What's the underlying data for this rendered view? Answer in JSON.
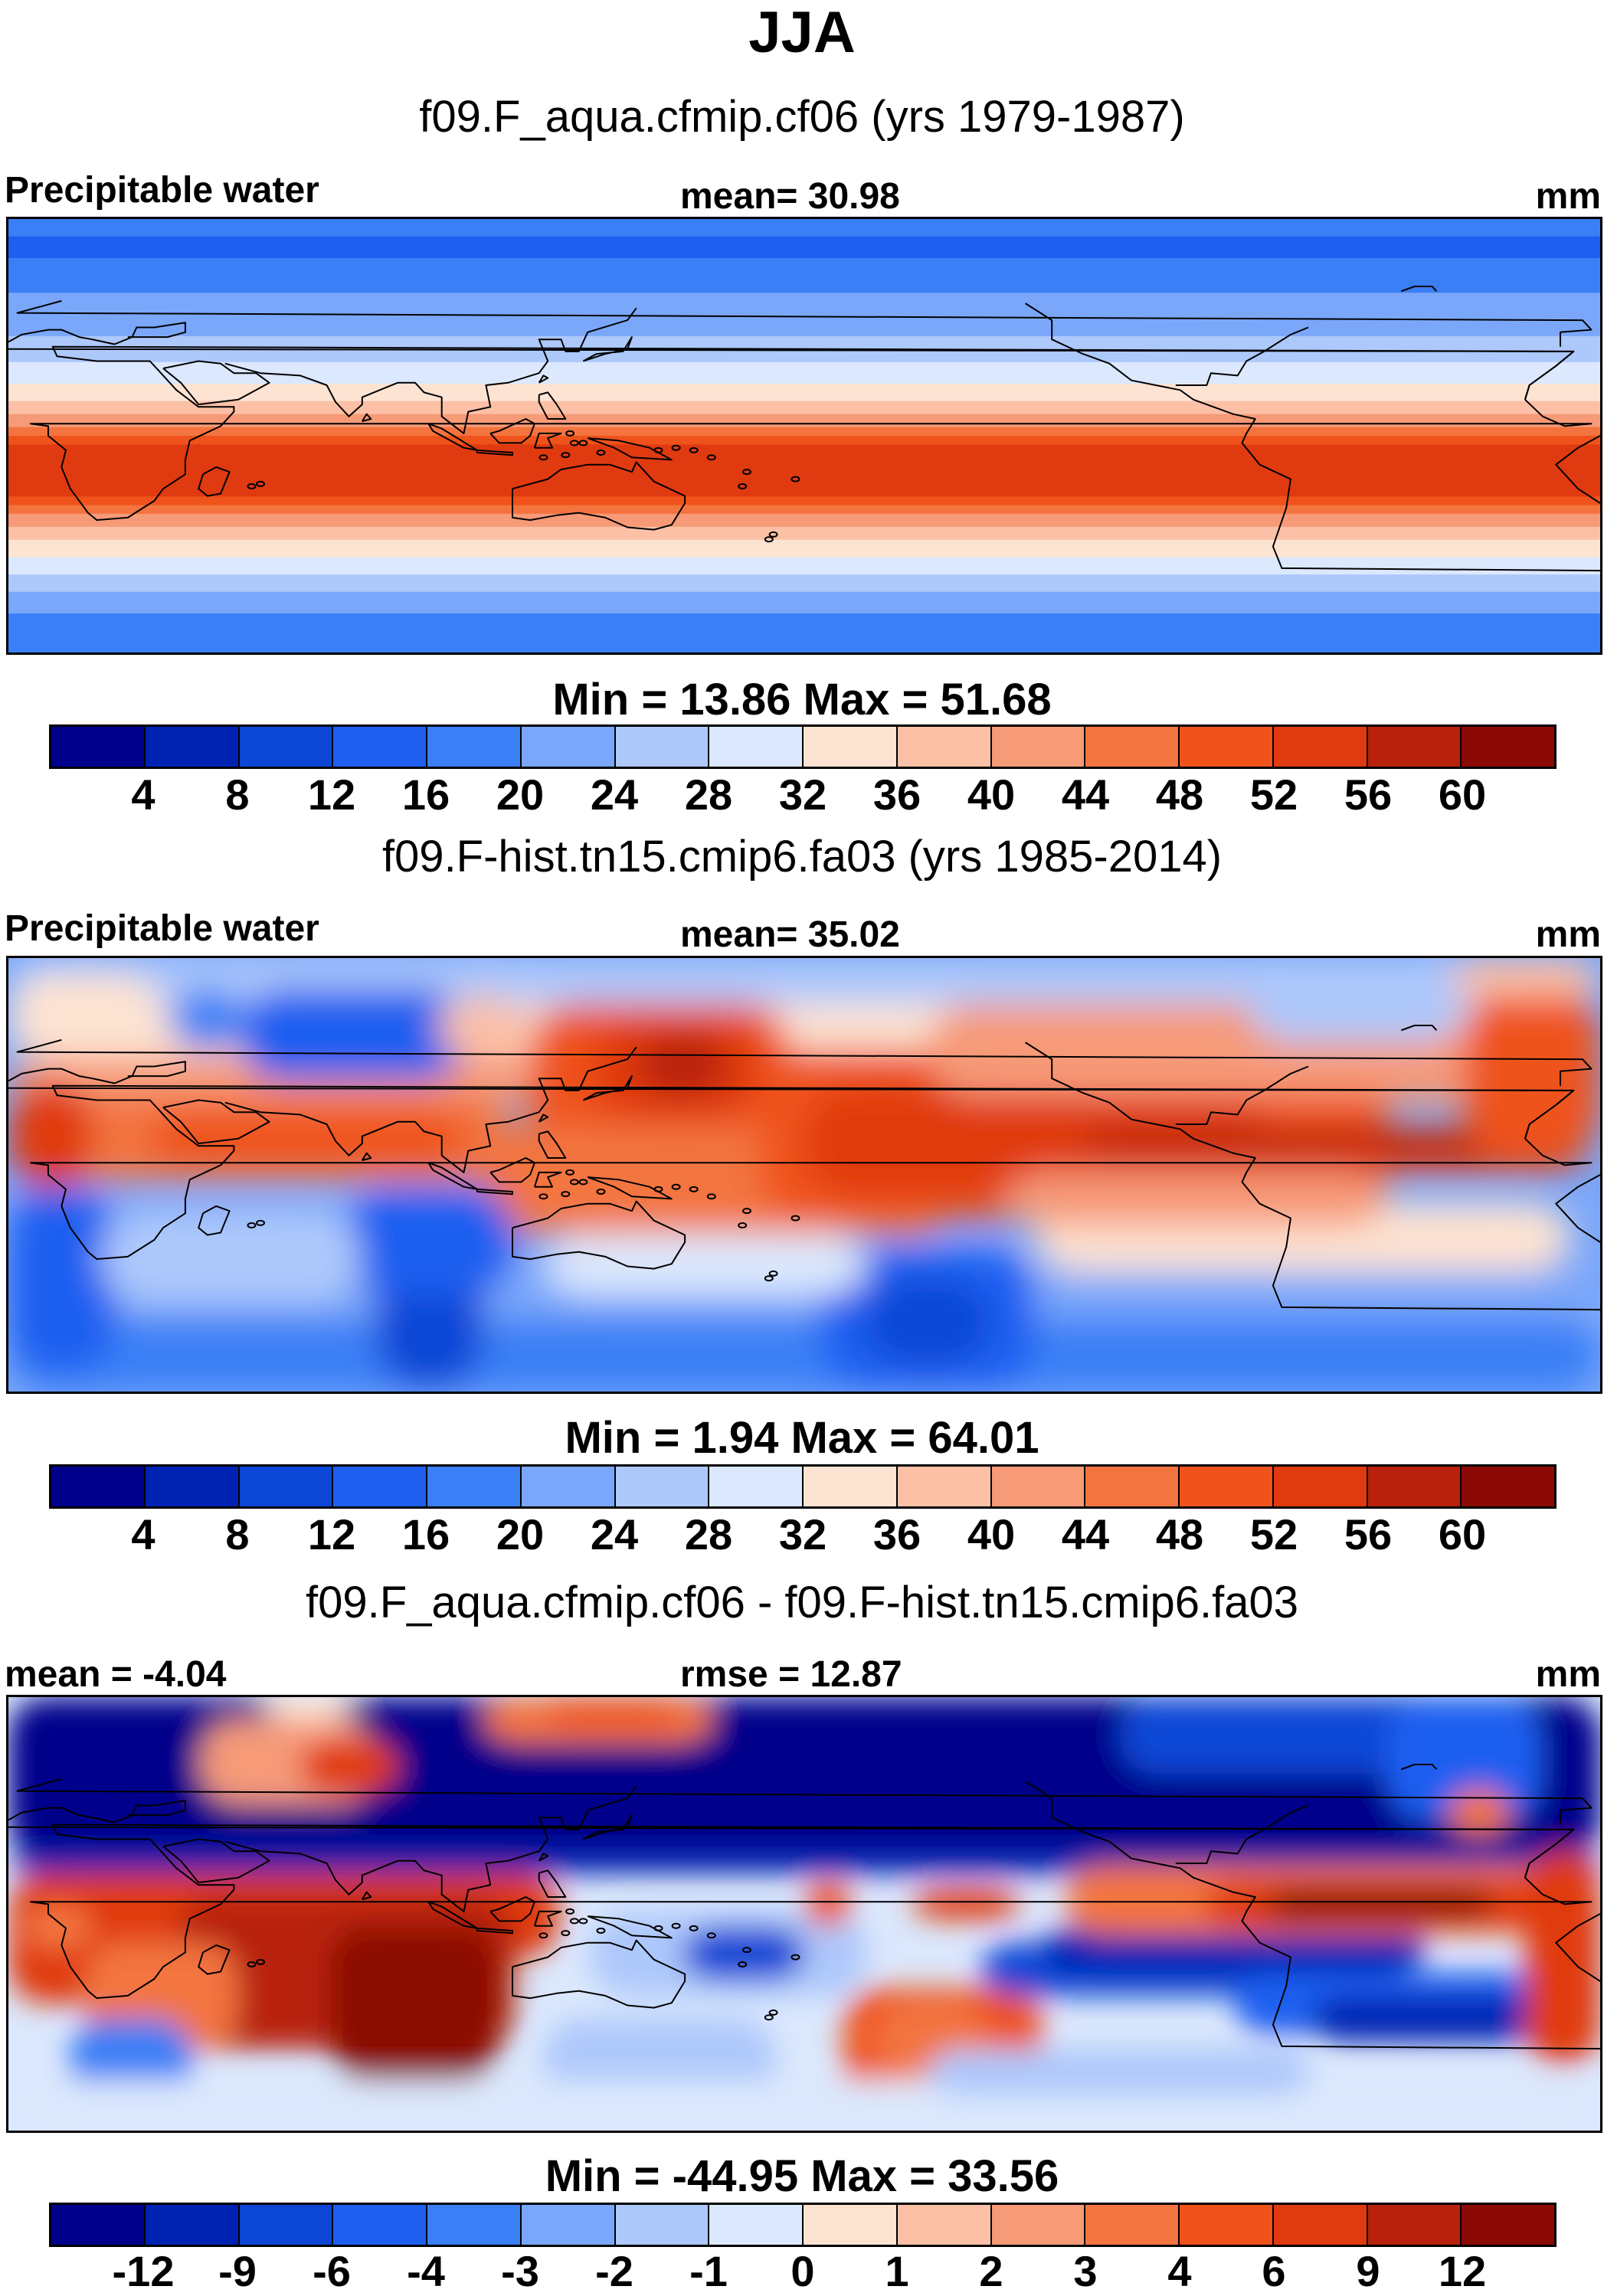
{
  "figure": {
    "title": "JJA"
  },
  "panels": [
    {
      "case_title": "f09.F_aqua.cfmip.cf06 (yrs 1979-1987)",
      "header_left": "Precipitable water",
      "header_center": "mean=  30.98",
      "header_right": "mm",
      "minmax": "Min =  13.86 Max =  51.68",
      "field_pattern": "zonal-aquaplanet",
      "colorbar": {
        "colors": [
          "#00008b",
          "#0022b3",
          "#0b46d6",
          "#1e5ff0",
          "#3a7ff6",
          "#7aa7fa",
          "#adc8fb",
          "#dbe8fd",
          "#fde3d2",
          "#fbc0a6",
          "#f69a78",
          "#f3743f",
          "#ef531b",
          "#e03a10",
          "#b8220d",
          "#8b0a06"
        ],
        "tick_labels": [
          "4",
          "8",
          "12",
          "16",
          "20",
          "24",
          "28",
          "32",
          "36",
          "40",
          "44",
          "48",
          "52",
          "56",
          "60"
        ]
      }
    },
    {
      "case_title": "f09.F-hist.tn15.cmip6.fa03 (yrs 1985-2014)",
      "header_left": "Precipitable water",
      "header_center": "mean=  35.02",
      "header_right": "mm",
      "minmax": "Min =   1.94 Max =  64.01",
      "field_pattern": "realistic-climate",
      "colorbar": {
        "colors": [
          "#00008b",
          "#0022b3",
          "#0b46d6",
          "#1e5ff0",
          "#3a7ff6",
          "#7aa7fa",
          "#adc8fb",
          "#dbe8fd",
          "#fde3d2",
          "#fbc0a6",
          "#f69a78",
          "#f3743f",
          "#ef531b",
          "#e03a10",
          "#b8220d",
          "#8b0a06"
        ],
        "tick_labels": [
          "4",
          "8",
          "12",
          "16",
          "20",
          "24",
          "28",
          "32",
          "36",
          "40",
          "44",
          "48",
          "52",
          "56",
          "60"
        ]
      }
    },
    {
      "case_title": "f09.F_aqua.cfmip.cf06 - f09.F-hist.tn15.cmip6.fa03",
      "header_left": "mean =  -4.04",
      "header_center": "rmse =  12.87",
      "header_right": "mm",
      "minmax": "Min = -44.95 Max =  33.56",
      "field_pattern": "difference",
      "colorbar": {
        "colors": [
          "#00008b",
          "#0022b3",
          "#0b46d6",
          "#1e5ff0",
          "#3a7ff6",
          "#7aa7fa",
          "#adc8fb",
          "#dbe8fd",
          "#fde3d2",
          "#fbc0a6",
          "#f69a78",
          "#f3743f",
          "#ef531b",
          "#e03a10",
          "#b8220d",
          "#8b0a06"
        ],
        "tick_labels": [
          "-12",
          "-9",
          "-6",
          "-4",
          "-3",
          "-2",
          "-1",
          "0",
          "1",
          "2",
          "3",
          "4",
          "6",
          "9",
          "12"
        ]
      }
    }
  ]
}
